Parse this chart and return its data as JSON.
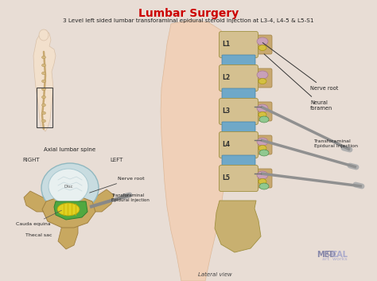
{
  "title_main": "Lumbar Surgery",
  "title_sub": "3 Level left sided lumbar transforaminal epidural steroid injection at L3-4, L4-5 & L5-S1",
  "title_main_color": "#cc0000",
  "title_sub_color": "#222222",
  "bg_color": "#e8ddd5",
  "lateral_view_text": "Lateral view",
  "axial_title": "Axial lumbar spine",
  "right_label": "RIGHT",
  "left_label": "LEFT",
  "disc_label": "Disc",
  "nerve_root_label1": "Nerve root",
  "trans_label1": "Transforaminal\nEpidural Injection",
  "cauda_label": "Cauda equina",
  "thecal_label": "Thecal sac",
  "nerve_root_label2": "Nerve root",
  "neural_label": "Neural\nforamen",
  "trans_label2": "Transforaminal\nEpidural Injection",
  "levels": [
    "L1",
    "L2",
    "L3",
    "L4",
    "L5"
  ],
  "spine_color": "#d4c090",
  "disc_color": "#6fa8c8",
  "nerve_pink": "#c8a0b8",
  "nerve_green": "#90c890",
  "nerve_yellow": "#d4c040",
  "needle_color": "#707070",
  "axial_outer_color": "#c8dde0",
  "axial_bone_color": "#c8b070",
  "axial_yellow_color": "#d8d030",
  "axial_green_color": "#50a050",
  "skin_color": "#f0d5be",
  "skin_edge": "#e0c0a8"
}
